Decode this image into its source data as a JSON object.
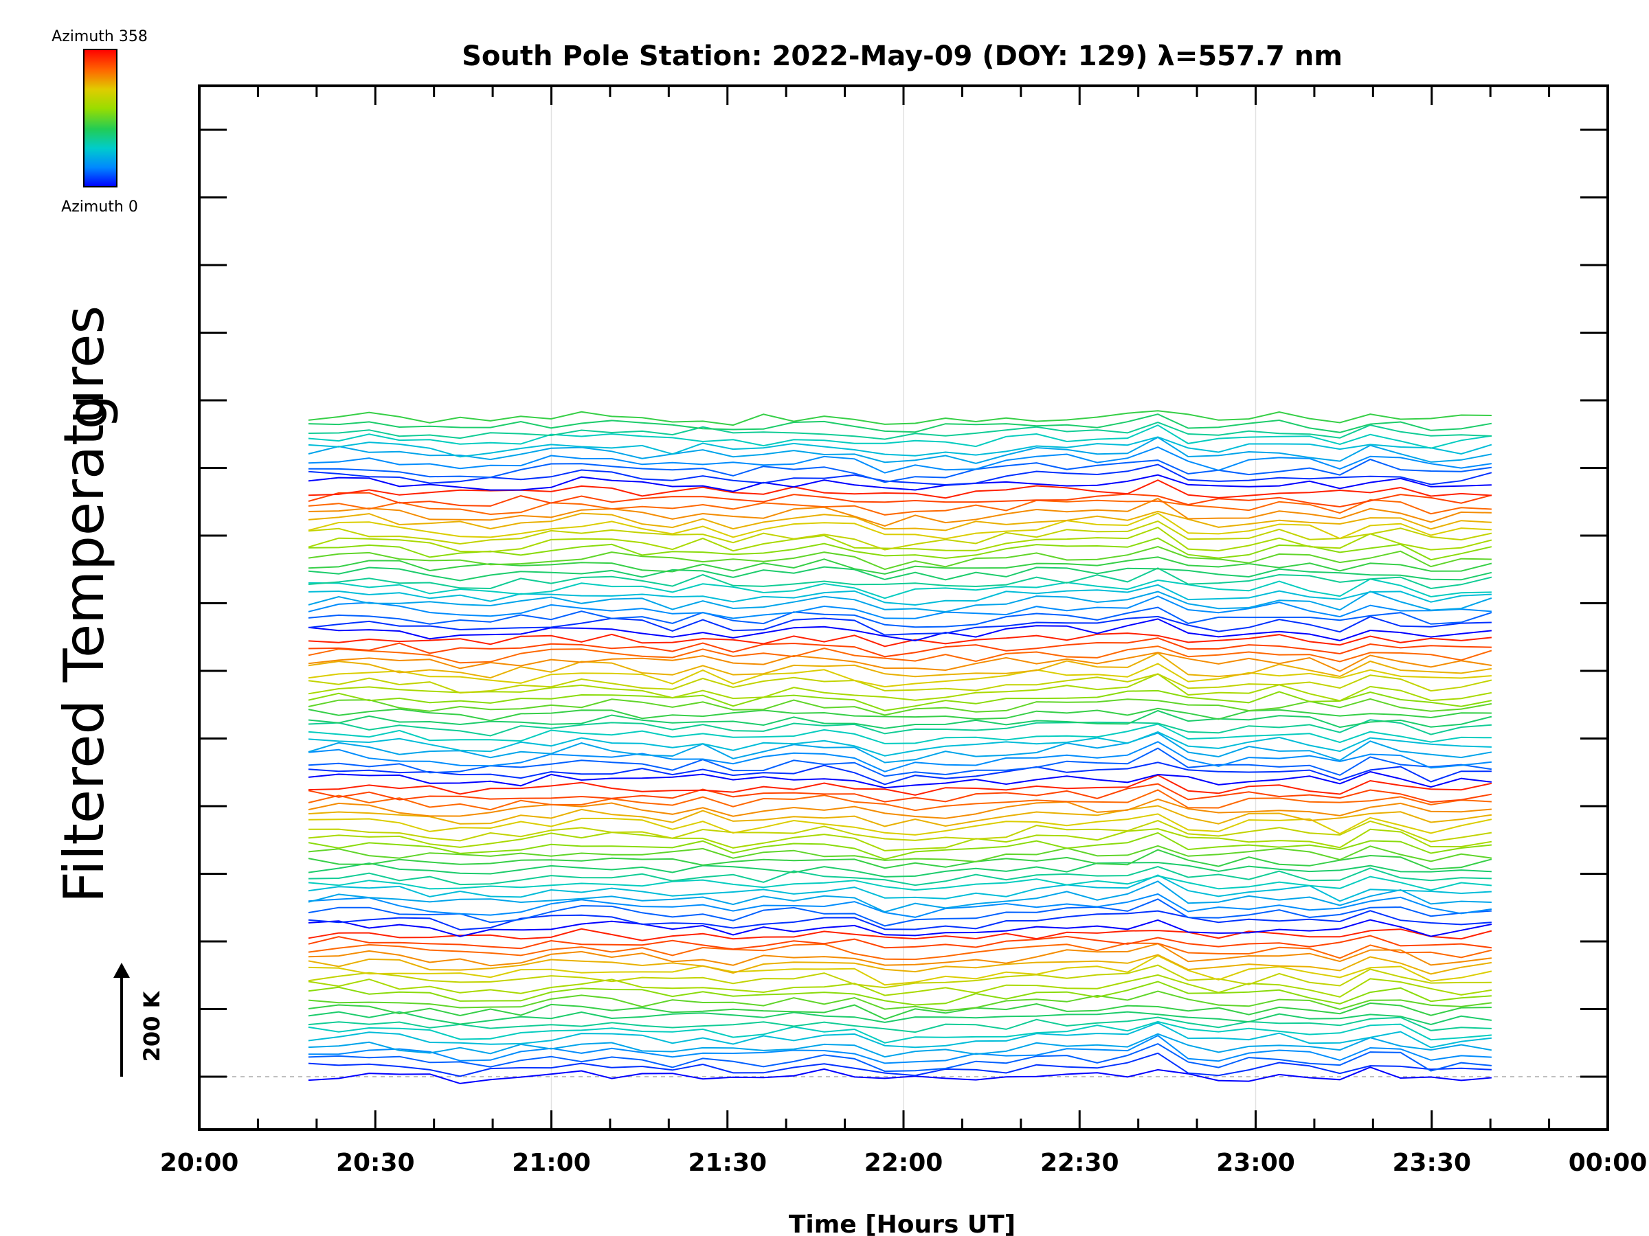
{
  "chart_data": {
    "type": "line",
    "title": "South Pole Station: 2022-May-09 (DOY: 129) λ=557.7 nm",
    "xlabel": "Time [Hours UT]",
    "ylabel_partial": "g",
    "ylabel": "Filtered Temperatures",
    "xlim": [
      20.0,
      24.0
    ],
    "x_tick_labels": [
      "20:00",
      "20:30",
      "21:00",
      "21:30",
      "22:00",
      "22:30",
      "23:00",
      "23:30",
      "00:00"
    ],
    "x_tick_hours": [
      20.0,
      20.5,
      21.0,
      21.5,
      22.0,
      22.5,
      23.0,
      23.5,
      24.0
    ],
    "y_offset_step_k": 30,
    "y_scale_bar": {
      "label": "200 K",
      "value_k": 200
    },
    "colorbar": {
      "top_label": "Azimuth 358",
      "bottom_label": "Azimuth 0",
      "min": 0,
      "max": 358
    },
    "colormap_stops": [
      "#0000ff",
      "#0088ff",
      "#00cccc",
      "#22cc55",
      "#99dd00",
      "#e0cc00",
      "#ff6600",
      "#ff0000"
    ],
    "series_count": 90,
    "series_azimuth_step_deg": 18,
    "series_per_group": 20,
    "time_start_hour": 20.31,
    "time_end_hour": 23.67,
    "time_points": 40,
    "gridlines_at_hours": [
      21.0,
      22.0,
      23.0
    ],
    "baseline_dashed": true
  }
}
